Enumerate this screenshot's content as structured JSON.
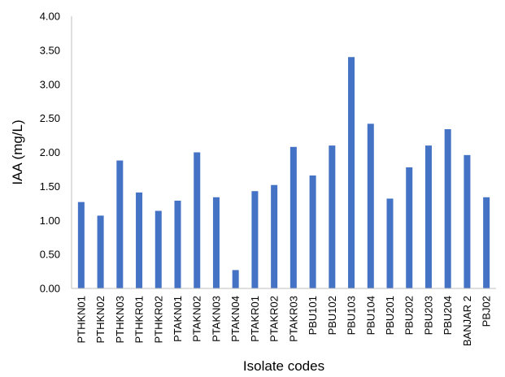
{
  "chart_data": {
    "type": "bar",
    "xlabel": "Isolate codes",
    "ylabel": "IAA (mg/L)",
    "ylim": [
      0,
      4
    ],
    "yticks": [
      "0.00",
      "0.50",
      "1.00",
      "1.50",
      "2.00",
      "2.50",
      "3.00",
      "3.50",
      "4.00"
    ],
    "grid": false,
    "bar_color": "#4472C4",
    "categories": [
      "PTHKN01",
      "PTHKN02",
      "PTHKN03",
      "PTHKR01",
      "PTHKR02",
      "PTAKN01",
      "PTAKN02",
      "PTAKN03",
      "PTAKN04",
      "PTAKR01",
      "PTAKR02",
      "PTAKR03",
      "PBU101",
      "PBU102",
      "PBU103",
      "PBU104",
      "PBU201",
      "PBU202",
      "PBU203",
      "PBU204",
      "BANJAR 2",
      "PBJ02"
    ],
    "values": [
      1.27,
      1.07,
      1.88,
      1.41,
      1.14,
      1.29,
      2.0,
      1.34,
      0.27,
      1.43,
      1.52,
      2.08,
      1.66,
      2.1,
      3.4,
      2.42,
      1.32,
      1.78,
      2.1,
      2.34,
      1.96,
      1.34
    ]
  }
}
